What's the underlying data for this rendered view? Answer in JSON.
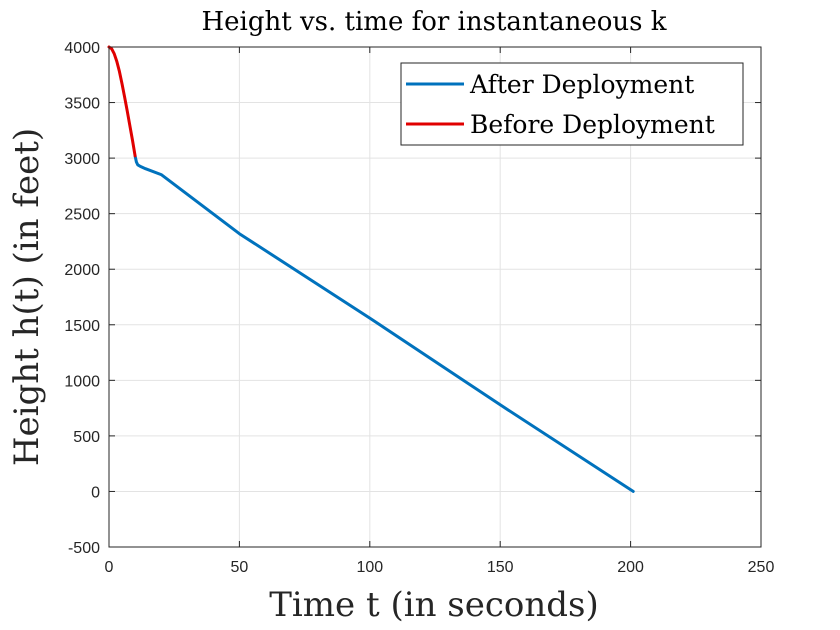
{
  "chart_data": {
    "type": "line",
    "title": "Height vs. time for instantaneous k",
    "xlabel": "Time t (in seconds)",
    "ylabel": "Height h(t) (in feet)",
    "xlim": [
      0,
      250
    ],
    "ylim": [
      -500,
      4000
    ],
    "xticks": [
      0,
      50,
      100,
      150,
      200,
      250
    ],
    "yticks": [
      -500,
      0,
      500,
      1000,
      1500,
      2000,
      2500,
      3000,
      3500,
      4000
    ],
    "xtick_labels": [
      "0",
      "50",
      "100",
      "150",
      "200",
      "250"
    ],
    "ytick_labels": [
      "-500",
      "0",
      "500",
      "1000",
      "1500",
      "2000",
      "2500",
      "3000",
      "3500",
      "4000"
    ],
    "grid": true,
    "legend_position": "top-right",
    "series": [
      {
        "name": "After Deployment",
        "color": "#0072BD",
        "x": [
          10,
          10.5,
          11,
          12,
          14,
          20,
          50,
          100,
          150,
          201
        ],
        "y": [
          3020,
          2965,
          2940,
          2925,
          2905,
          2852,
          2320,
          1560,
          780,
          0
        ]
      },
      {
        "name": "Before Deployment",
        "color": "#E00000",
        "x": [
          0,
          1,
          2,
          3,
          4,
          5,
          6,
          7,
          8,
          9,
          10
        ],
        "y": [
          4000,
          3985,
          3940,
          3870,
          3780,
          3670,
          3550,
          3420,
          3290,
          3160,
          3020
        ]
      }
    ]
  }
}
